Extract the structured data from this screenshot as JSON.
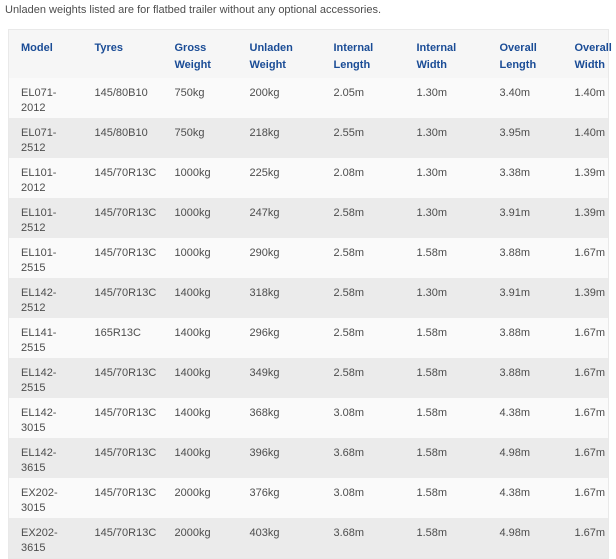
{
  "note": "Unladen weights listed are for flatbed trailer without any optional accessories.",
  "colors": {
    "header_text": "#1a4c96",
    "body_text": "#4d4d4d",
    "row_odd_bg": "#fafafa",
    "row_even_bg": "#ebebeb",
    "header_bg": "#f6f6f6",
    "table_border": "#e9e9e9"
  },
  "table": {
    "columns": [
      {
        "key": "model",
        "label": "Model"
      },
      {
        "key": "tyres",
        "label": "Tyres"
      },
      {
        "key": "gross_weight",
        "label": "Gross Weight"
      },
      {
        "key": "unladen_weight",
        "label": "Unladen Weight"
      },
      {
        "key": "internal_length",
        "label": "Internal Length"
      },
      {
        "key": "internal_width",
        "label": "Internal Width"
      },
      {
        "key": "overall_length",
        "label": "Overall Length"
      },
      {
        "key": "overall_width",
        "label": "Overall Width"
      }
    ],
    "rows": [
      {
        "model": "EL071-2012",
        "tyres": "145/80B10",
        "gross_weight": "750kg",
        "unladen_weight": "200kg",
        "internal_length": "2.05m",
        "internal_width": "1.30m",
        "overall_length": "3.40m",
        "overall_width": "1.40m"
      },
      {
        "model": "EL071-2512",
        "tyres": "145/80B10",
        "gross_weight": "750kg",
        "unladen_weight": "218kg",
        "internal_length": "2.55m",
        "internal_width": "1.30m",
        "overall_length": "3.95m",
        "overall_width": "1.40m"
      },
      {
        "model": "EL101-2012",
        "tyres": "145/70R13C",
        "gross_weight": "1000kg",
        "unladen_weight": "225kg",
        "internal_length": "2.08m",
        "internal_width": "1.30m",
        "overall_length": "3.38m",
        "overall_width": "1.39m"
      },
      {
        "model": "EL101-2512",
        "tyres": "145/70R13C",
        "gross_weight": "1000kg",
        "unladen_weight": "247kg",
        "internal_length": "2.58m",
        "internal_width": "1.30m",
        "overall_length": "3.91m",
        "overall_width": "1.39m"
      },
      {
        "model": "EL101-2515",
        "tyres": "145/70R13C",
        "gross_weight": "1000kg",
        "unladen_weight": "290kg",
        "internal_length": "2.58m",
        "internal_width": "1.58m",
        "overall_length": "3.88m",
        "overall_width": "1.67m"
      },
      {
        "model": "EL142-2512",
        "tyres": "145/70R13C",
        "gross_weight": "1400kg",
        "unladen_weight": "318kg",
        "internal_length": "2.58m",
        "internal_width": "1.30m",
        "overall_length": "3.91m",
        "overall_width": "1.39m"
      },
      {
        "model": "EL141-2515",
        "tyres": "165R13C",
        "gross_weight": "1400kg",
        "unladen_weight": "296kg",
        "internal_length": "2.58m",
        "internal_width": "1.58m",
        "overall_length": "3.88m",
        "overall_width": "1.67m"
      },
      {
        "model": "EL142-2515",
        "tyres": "145/70R13C",
        "gross_weight": "1400kg",
        "unladen_weight": "349kg",
        "internal_length": "2.58m",
        "internal_width": "1.58m",
        "overall_length": "3.88m",
        "overall_width": "1.67m"
      },
      {
        "model": "EL142-3015",
        "tyres": "145/70R13C",
        "gross_weight": "1400kg",
        "unladen_weight": "368kg",
        "internal_length": "3.08m",
        "internal_width": "1.58m",
        "overall_length": "4.38m",
        "overall_width": "1.67m"
      },
      {
        "model": "EL142-3615",
        "tyres": "145/70R13C",
        "gross_weight": "1400kg",
        "unladen_weight": "396kg",
        "internal_length": "3.68m",
        "internal_width": "1.58m",
        "overall_length": "4.98m",
        "overall_width": "1.67m"
      },
      {
        "model": "EX202-3015",
        "tyres": "145/70R13C",
        "gross_weight": "2000kg",
        "unladen_weight": "376kg",
        "internal_length": "3.08m",
        "internal_width": "1.58m",
        "overall_length": "4.38m",
        "overall_width": "1.67m"
      },
      {
        "model": "EX202-3615",
        "tyres": "145/70R13C",
        "gross_weight": "2000kg",
        "unladen_weight": "403kg",
        "internal_length": "3.68m",
        "internal_width": "1.58m",
        "overall_length": "4.98m",
        "overall_width": "1.67m"
      }
    ]
  }
}
